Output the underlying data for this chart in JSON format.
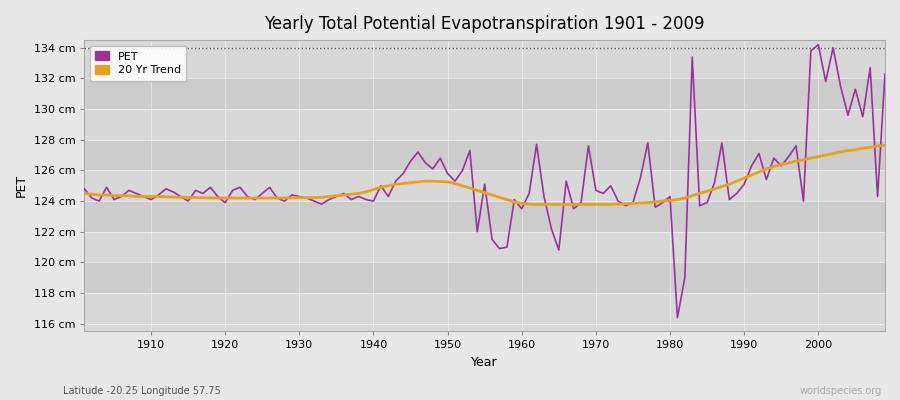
{
  "title": "Yearly Total Potential Evapotranspiration 1901 - 2009",
  "xlabel": "Year",
  "ylabel": "PET",
  "subtitle_left": "Latitude -20.25 Longitude 57.75",
  "subtitle_right": "worldspecies.org",
  "pet_color": "#993399",
  "trend_color": "#e8a020",
  "fig_bg_color": "#e8e8e8",
  "band_colors": [
    "#d8d8d8",
    "#cccccc"
  ],
  "ylim": [
    115.5,
    134.5
  ],
  "yticks": [
    116,
    118,
    120,
    122,
    124,
    126,
    128,
    130,
    132,
    134
  ],
  "ytick_labels": [
    "116 cm",
    "118 cm",
    "120 cm",
    "122 cm",
    "124 cm",
    "126 cm",
    "128 cm",
    "130 cm",
    "132 cm",
    "134 cm"
  ],
  "xticks": [
    1910,
    1920,
    1930,
    1940,
    1950,
    1960,
    1970,
    1980,
    1990,
    2000
  ],
  "years": [
    1901,
    1902,
    1903,
    1904,
    1905,
    1906,
    1907,
    1908,
    1909,
    1910,
    1911,
    1912,
    1913,
    1914,
    1915,
    1916,
    1917,
    1918,
    1919,
    1920,
    1921,
    1922,
    1923,
    1924,
    1925,
    1926,
    1927,
    1928,
    1929,
    1930,
    1931,
    1932,
    1933,
    1934,
    1935,
    1936,
    1937,
    1938,
    1939,
    1940,
    1941,
    1942,
    1943,
    1944,
    1945,
    1946,
    1947,
    1948,
    1949,
    1950,
    1951,
    1952,
    1953,
    1954,
    1955,
    1956,
    1957,
    1958,
    1959,
    1960,
    1961,
    1962,
    1963,
    1964,
    1965,
    1966,
    1967,
    1968,
    1969,
    1970,
    1971,
    1972,
    1973,
    1974,
    1975,
    1976,
    1977,
    1978,
    1979,
    1980,
    1981,
    1982,
    1983,
    1984,
    1985,
    1986,
    1987,
    1988,
    1989,
    1990,
    1991,
    1992,
    1993,
    1994,
    1995,
    1996,
    1997,
    1998,
    1999,
    2000,
    2001,
    2002,
    2003,
    2004,
    2005,
    2006,
    2007,
    2008,
    2009
  ],
  "pet_values": [
    124.8,
    124.2,
    124.0,
    124.9,
    124.1,
    124.3,
    124.7,
    124.5,
    124.3,
    124.1,
    124.4,
    124.8,
    124.6,
    124.3,
    124.0,
    124.7,
    124.5,
    124.9,
    124.3,
    123.9,
    124.7,
    124.9,
    124.3,
    124.1,
    124.5,
    124.9,
    124.2,
    124.0,
    124.4,
    124.3,
    124.2,
    124.0,
    123.8,
    124.1,
    124.3,
    124.5,
    124.1,
    124.3,
    124.1,
    124.0,
    125.0,
    124.3,
    125.3,
    125.8,
    126.6,
    127.2,
    126.5,
    126.1,
    126.8,
    125.8,
    125.3,
    126.0,
    127.3,
    122.0,
    125.1,
    121.5,
    120.9,
    121.0,
    124.1,
    123.5,
    124.5,
    127.7,
    124.3,
    122.2,
    120.8,
    125.3,
    123.5,
    123.9,
    127.6,
    124.7,
    124.5,
    125.0,
    124.0,
    123.7,
    123.9,
    125.5,
    127.8,
    123.6,
    123.9,
    124.3,
    116.4,
    119.0,
    133.4,
    123.7,
    123.9,
    125.2,
    127.8,
    124.1,
    124.5,
    125.1,
    126.3,
    127.1,
    125.4,
    126.8,
    126.3,
    126.9,
    127.6,
    124.0,
    133.8,
    134.2,
    131.8,
    134.0,
    131.5,
    129.6,
    131.3,
    129.5,
    132.7,
    124.3,
    132.3
  ],
  "trend_values": [
    124.5,
    124.45,
    124.4,
    124.4,
    124.35,
    124.35,
    124.35,
    124.3,
    124.3,
    124.3,
    124.3,
    124.28,
    124.26,
    124.25,
    124.24,
    124.23,
    124.22,
    124.21,
    124.2,
    124.2,
    124.2,
    124.2,
    124.2,
    124.2,
    124.2,
    124.2,
    124.2,
    124.2,
    124.21,
    124.22,
    124.23,
    124.24,
    124.25,
    124.3,
    124.35,
    124.4,
    124.45,
    124.5,
    124.6,
    124.75,
    124.9,
    125.0,
    125.1,
    125.15,
    125.2,
    125.25,
    125.3,
    125.3,
    125.28,
    125.25,
    125.15,
    125.0,
    124.85,
    124.7,
    124.55,
    124.4,
    124.25,
    124.1,
    123.95,
    123.85,
    123.8,
    123.78,
    123.78,
    123.78,
    123.78,
    123.78,
    123.78,
    123.78,
    123.78,
    123.78,
    123.78,
    123.78,
    123.8,
    123.82,
    123.85,
    123.88,
    123.9,
    123.95,
    124.0,
    124.05,
    124.1,
    124.2,
    124.35,
    124.5,
    124.65,
    124.8,
    124.95,
    125.1,
    125.3,
    125.5,
    125.7,
    125.9,
    126.1,
    126.25,
    126.4,
    126.5,
    126.6,
    126.7,
    126.8,
    126.9,
    127.0,
    127.1,
    127.2,
    127.3,
    127.35,
    127.45,
    127.5,
    127.6,
    127.65
  ]
}
